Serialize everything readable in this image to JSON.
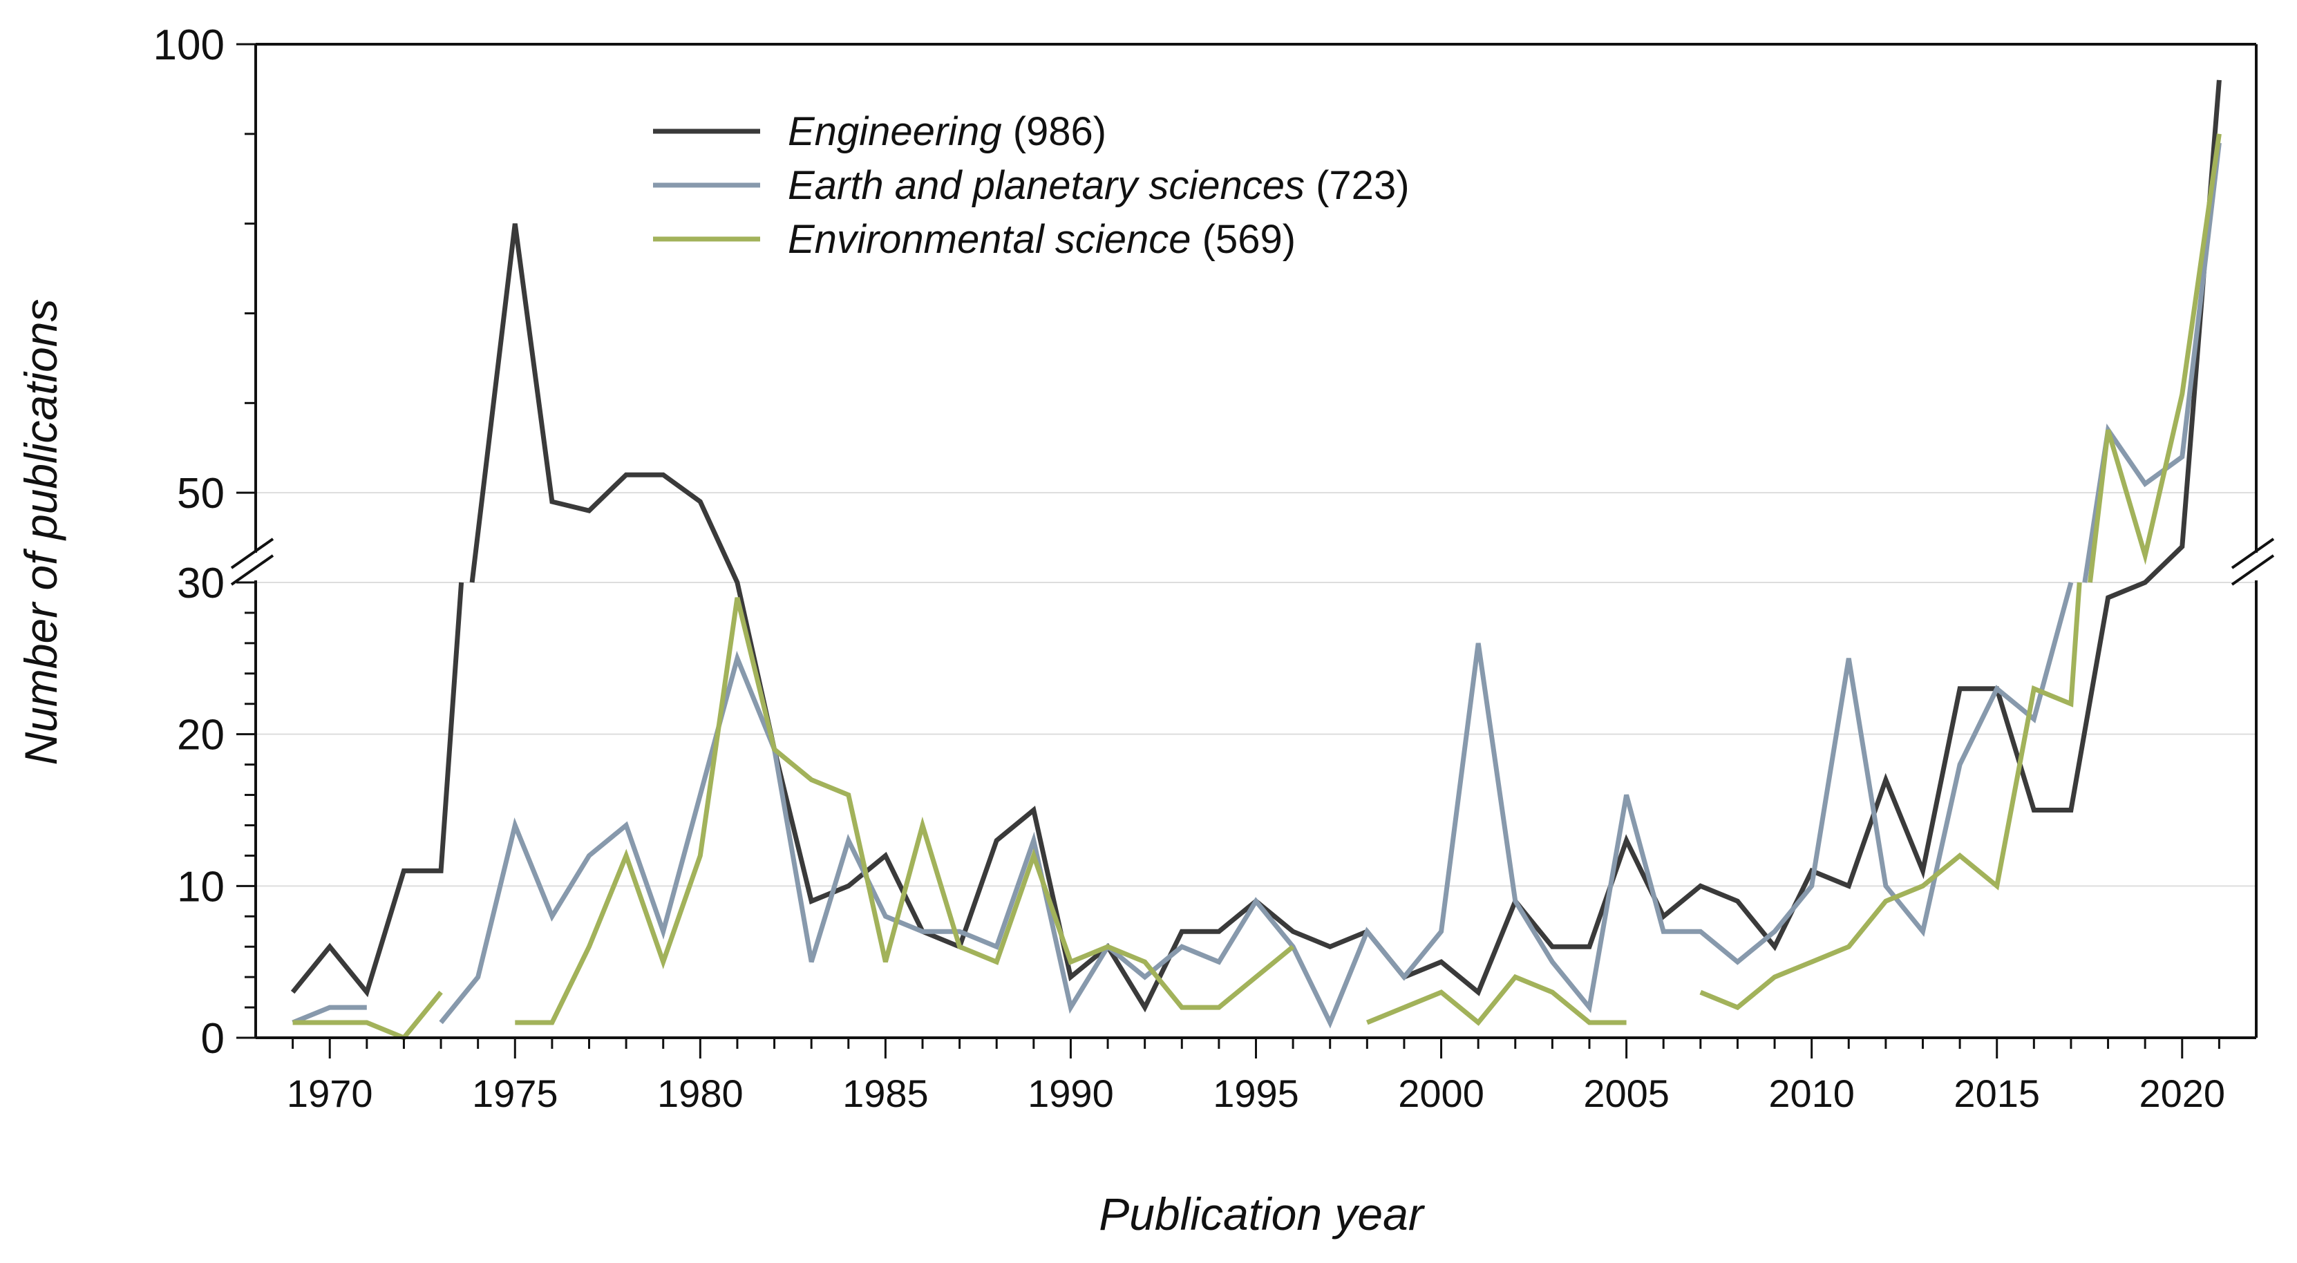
{
  "chart_data": {
    "type": "line",
    "x_label": "Publication year",
    "y_label": "Number of publications",
    "axis_break": {
      "between": [
        30,
        40
      ]
    },
    "y_ticks_lower": [
      "0",
      "10",
      "20",
      "30"
    ],
    "y_ticks_upper": [
      "50",
      "100"
    ],
    "x_ticks": [
      "1970",
      "1975",
      "1980",
      "1985",
      "1990",
      "1995",
      "2000",
      "2005",
      "2010",
      "2015",
      "2020"
    ],
    "xlim": [
      1968,
      2022
    ],
    "series": [
      {
        "name": "Engineering",
        "count": "(986)",
        "color": "#3a3a3a",
        "points": [
          [
            1969,
            3
          ],
          [
            1970,
            6
          ],
          [
            1971,
            3
          ],
          [
            1972,
            11
          ],
          [
            1973,
            11
          ],
          [
            1975,
            80
          ],
          [
            1976,
            49
          ],
          [
            1977,
            48
          ],
          [
            1978,
            52
          ],
          [
            1979,
            52
          ],
          [
            1980,
            49
          ],
          [
            1981,
            39
          ],
          [
            1982,
            19
          ],
          [
            1983,
            9
          ],
          [
            1984,
            10
          ],
          [
            1985,
            12
          ],
          [
            1986,
            7
          ],
          [
            1987,
            6
          ],
          [
            1988,
            13
          ],
          [
            1989,
            15
          ],
          [
            1990,
            4
          ],
          [
            1991,
            6
          ],
          [
            1992,
            2
          ],
          [
            1993,
            7
          ],
          [
            1994,
            7
          ],
          [
            1995,
            9
          ],
          [
            1996,
            7
          ],
          [
            1997,
            6
          ],
          [
            1998,
            7
          ],
          [
            1999,
            4
          ],
          [
            2000,
            5
          ],
          [
            2001,
            3
          ],
          [
            2002,
            9
          ],
          [
            2003,
            6
          ],
          [
            2004,
            6
          ],
          [
            2005,
            13
          ],
          [
            2006,
            8
          ],
          [
            2007,
            10
          ],
          [
            2008,
            9
          ],
          [
            2009,
            6
          ],
          [
            2010,
            11
          ],
          [
            2011,
            10
          ],
          [
            2012,
            17
          ],
          [
            2013,
            11
          ],
          [
            2014,
            23
          ],
          [
            2015,
            23
          ],
          [
            2016,
            15
          ],
          [
            2017,
            15
          ],
          [
            2018,
            29
          ],
          [
            2019,
            36
          ],
          [
            2020,
            44
          ],
          [
            2021,
            96
          ]
        ]
      },
      {
        "name": "Earth and planetary sciences",
        "count": "(723)",
        "color": "#8799ac",
        "points": [
          [
            1969,
            1
          ],
          [
            1970,
            2
          ],
          [
            1971,
            2
          ],
          [
            1972,
            null
          ],
          [
            1973,
            1
          ],
          [
            1974,
            4
          ],
          [
            1975,
            14
          ],
          [
            1976,
            8
          ],
          [
            1977,
            12
          ],
          [
            1978,
            14
          ],
          [
            1979,
            7
          ],
          [
            1980,
            16
          ],
          [
            1981,
            25
          ],
          [
            1982,
            19
          ],
          [
            1983,
            5
          ],
          [
            1984,
            13
          ],
          [
            1985,
            8
          ],
          [
            1986,
            7
          ],
          [
            1987,
            7
          ],
          [
            1988,
            6
          ],
          [
            1989,
            13
          ],
          [
            1990,
            2
          ],
          [
            1991,
            6
          ],
          [
            1992,
            4
          ],
          [
            1993,
            6
          ],
          [
            1994,
            5
          ],
          [
            1995,
            9
          ],
          [
            1996,
            6
          ],
          [
            1997,
            1
          ],
          [
            1998,
            7
          ],
          [
            1999,
            4
          ],
          [
            2000,
            7
          ],
          [
            2001,
            26
          ],
          [
            2002,
            9
          ],
          [
            2003,
            5
          ],
          [
            2004,
            2
          ],
          [
            2005,
            16
          ],
          [
            2006,
            7
          ],
          [
            2007,
            7
          ],
          [
            2008,
            5
          ],
          [
            2009,
            7
          ],
          [
            2010,
            10
          ],
          [
            2011,
            25
          ],
          [
            2012,
            10
          ],
          [
            2013,
            7
          ],
          [
            2014,
            18
          ],
          [
            2015,
            23
          ],
          [
            2016,
            21
          ],
          [
            2017,
            30
          ],
          [
            2018,
            57
          ],
          [
            2019,
            51
          ],
          [
            2020,
            54
          ],
          [
            2021,
            89
          ]
        ]
      },
      {
        "name": "Environmental science",
        "count": "(569)",
        "color": "#a2b25a",
        "points": [
          [
            1969,
            1
          ],
          [
            1970,
            1
          ],
          [
            1971,
            1
          ],
          [
            1972,
            0
          ],
          [
            1973,
            3
          ],
          [
            1974,
            null
          ],
          [
            1975,
            1
          ],
          [
            1976,
            1
          ],
          [
            1977,
            6
          ],
          [
            1978,
            12
          ],
          [
            1979,
            5
          ],
          [
            1980,
            12
          ],
          [
            1981,
            29
          ],
          [
            1982,
            19
          ],
          [
            1983,
            17
          ],
          [
            1984,
            16
          ],
          [
            1985,
            5
          ],
          [
            1986,
            14
          ],
          [
            1987,
            6
          ],
          [
            1988,
            5
          ],
          [
            1989,
            12
          ],
          [
            1990,
            5
          ],
          [
            1991,
            6
          ],
          [
            1992,
            5
          ],
          [
            1993,
            2
          ],
          [
            1994,
            2
          ],
          [
            1995,
            4
          ],
          [
            1996,
            6
          ],
          [
            1997,
            null
          ],
          [
            1998,
            1
          ],
          [
            1999,
            2
          ],
          [
            2000,
            3
          ],
          [
            2001,
            1
          ],
          [
            2002,
            4
          ],
          [
            2003,
            3
          ],
          [
            2004,
            1
          ],
          [
            2005,
            1
          ],
          [
            2006,
            null
          ],
          [
            2007,
            3
          ],
          [
            2008,
            2
          ],
          [
            2009,
            4
          ],
          [
            2010,
            5
          ],
          [
            2011,
            6
          ],
          [
            2012,
            9
          ],
          [
            2013,
            10
          ],
          [
            2014,
            12
          ],
          [
            2015,
            10
          ],
          [
            2016,
            23
          ],
          [
            2017,
            22
          ],
          [
            2018,
            57
          ],
          [
            2019,
            43
          ],
          [
            2020,
            61
          ],
          [
            2021,
            90
          ]
        ]
      }
    ]
  }
}
